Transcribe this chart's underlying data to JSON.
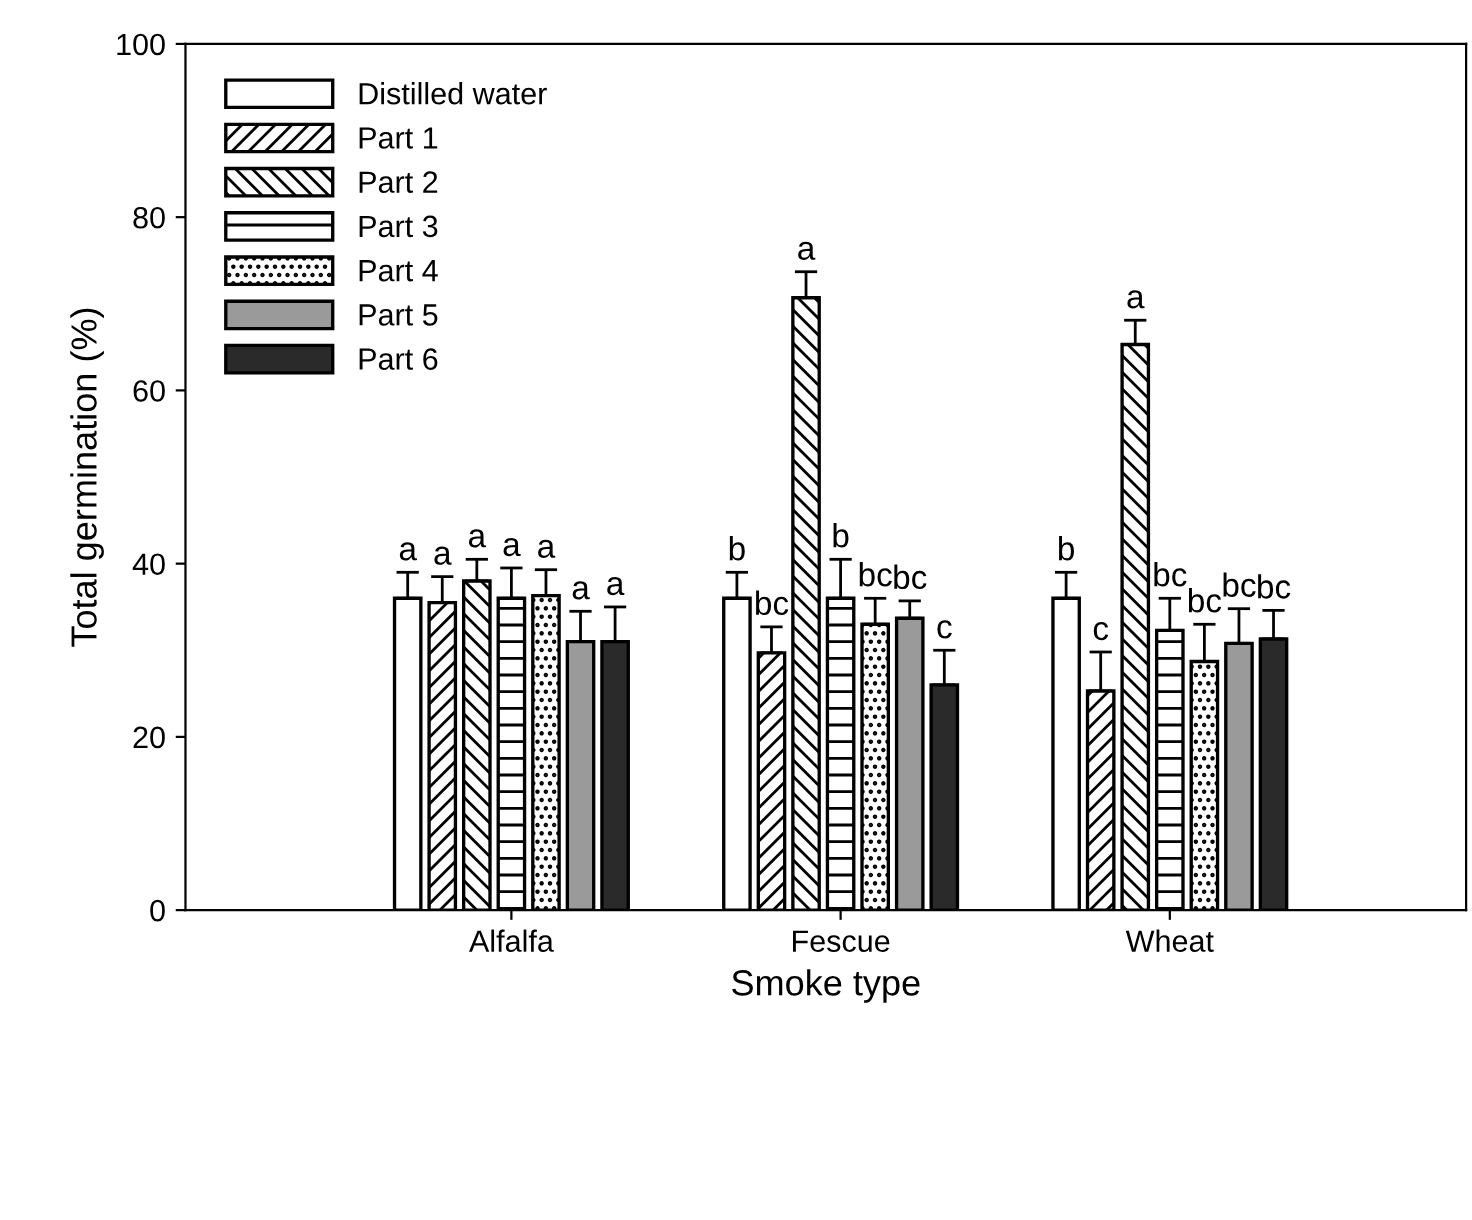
{
  "chart_data": {
    "type": "bar",
    "xlabel": "Smoke type",
    "ylabel": "Total germination (%)",
    "categories": [
      "Alfalfa",
      "Fescue",
      "Wheat"
    ],
    "ylim": [
      0,
      100
    ],
    "yticks": [
      0,
      20,
      40,
      60,
      80,
      100
    ],
    "grid": false,
    "legend": "top left",
    "series": [
      {
        "name": "Distilled water",
        "color": "#ffffff",
        "values": [
          36,
          36,
          36
        ],
        "errors": [
          3,
          3,
          3
        ],
        "value_labels": [
          "a",
          "b",
          "b"
        ]
      },
      {
        "name": "Part 1",
        "color": "#000000",
        "values": [
          35.5,
          29.7,
          25.3
        ],
        "errors": [
          3,
          3,
          4.5
        ],
        "value_labels": [
          "a",
          "bc",
          "c"
        ]
      },
      {
        "name": "Part 2",
        "color": "#000000",
        "values": [
          38,
          70.7,
          65.3
        ],
        "errors": [
          2.5,
          3,
          2.8
        ],
        "value_labels": [
          "a",
          "a",
          "a"
        ]
      },
      {
        "name": "Part 3",
        "color": "#000000",
        "values": [
          36,
          36,
          32.3
        ],
        "errors": [
          3.5,
          4.5,
          3.7
        ],
        "value_labels": [
          "a",
          "b",
          "bc"
        ]
      },
      {
        "name": "Part 4",
        "color": "#000000",
        "values": [
          36.3,
          33,
          28.7
        ],
        "errors": [
          3,
          3,
          4.3
        ],
        "value_labels": [
          "a",
          "bc",
          "bc"
        ]
      },
      {
        "name": "Part 5",
        "color": "#9a9a9a",
        "values": [
          31,
          33.7,
          30.8
        ],
        "errors": [
          3.5,
          2,
          4
        ],
        "value_labels": [
          "a",
          "bc",
          "bc"
        ]
      },
      {
        "name": "Part 6",
        "color": "#2a2a2a",
        "values": [
          31,
          26,
          31.3
        ],
        "errors": [
          4,
          4,
          3.3
        ],
        "value_labels": [
          "a",
          "c",
          "bc"
        ]
      }
    ]
  }
}
